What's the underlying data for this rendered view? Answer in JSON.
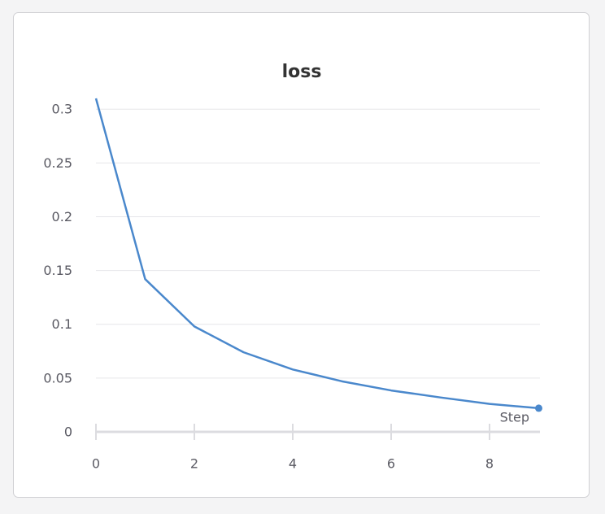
{
  "chart_data": {
    "type": "line",
    "title": "loss",
    "x_label": "Step",
    "x": [
      0,
      1,
      2,
      3,
      4,
      5,
      6,
      7,
      8,
      9
    ],
    "values": [
      0.31,
      0.142,
      0.098,
      0.074,
      0.058,
      0.047,
      0.0385,
      0.032,
      0.026,
      0.022
    ],
    "color": "#4a88cc",
    "xlim": [
      0,
      9
    ],
    "xticks": [
      0,
      2,
      4,
      6,
      8
    ],
    "ylim": [
      0,
      0.31
    ],
    "yticks": [
      0,
      0.05,
      0.1,
      0.15,
      0.2,
      0.25,
      0.3
    ],
    "grid": true
  }
}
